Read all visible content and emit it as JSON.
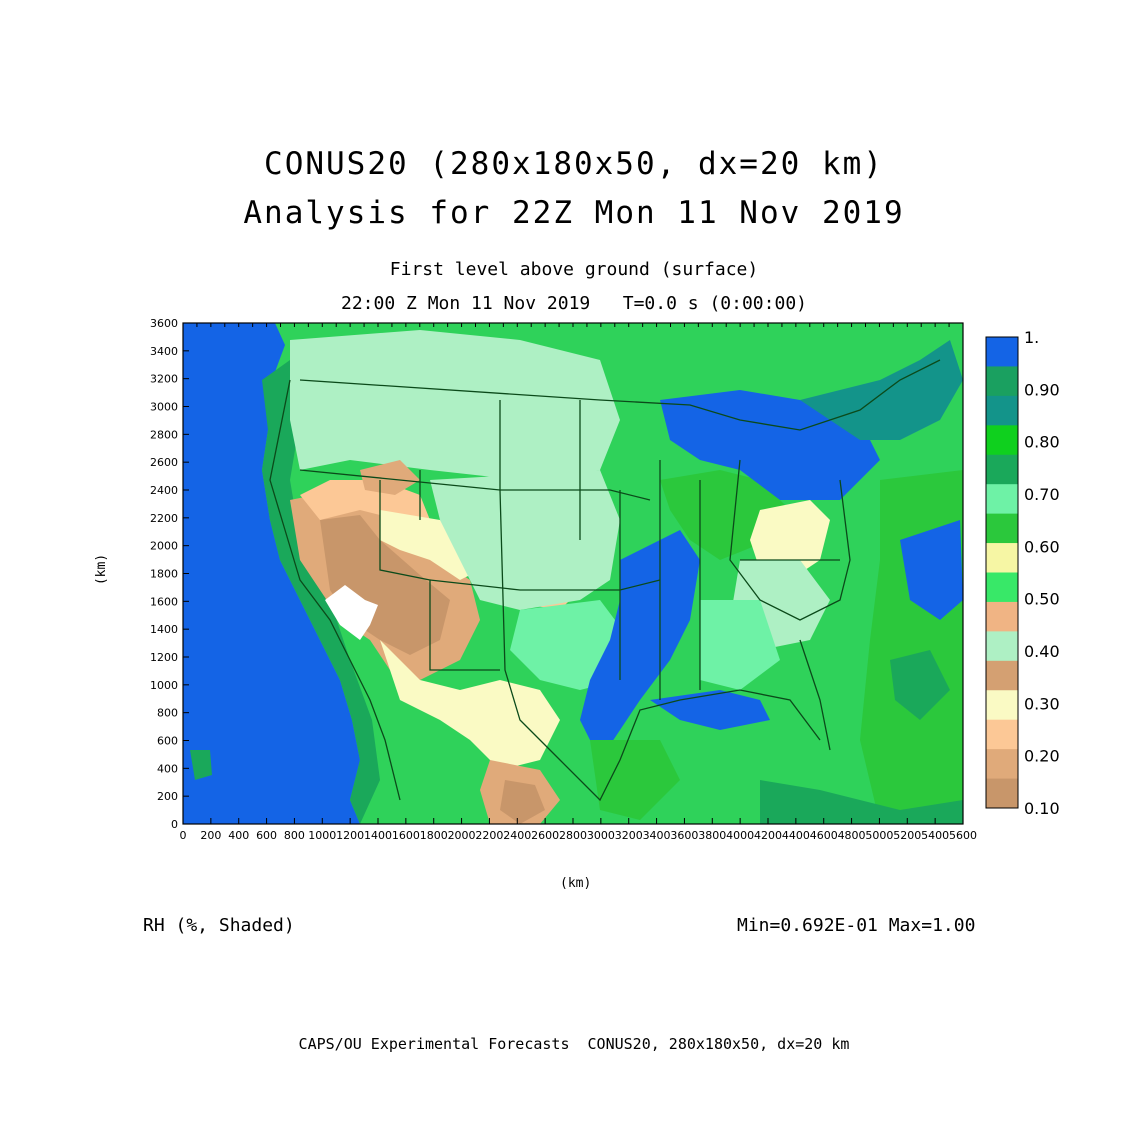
{
  "title": {
    "line1": "CONUS20 (280x180x50, dx=20 km)",
    "line2": "Analysis for 22Z Mon 11 Nov 2019"
  },
  "subtitle": {
    "line1": "First level above ground (surface)",
    "line2": "22:00 Z Mon 11 Nov 2019   T=0.0 s (0:00:00)"
  },
  "axes": {
    "xlabel": "(km)",
    "ylabel": "(km)",
    "xticks": [
      "0",
      "200",
      "400",
      "600",
      "800",
      "1000",
      "1200",
      "1400",
      "1600",
      "1800",
      "2000",
      "2200",
      "2400",
      "2600",
      "2800",
      "3000",
      "3200",
      "3400",
      "3600",
      "3800",
      "4000",
      "4200",
      "4400",
      "4600",
      "4800",
      "5000",
      "5200",
      "5400",
      "5600"
    ],
    "yticks": [
      "0",
      "200",
      "400",
      "600",
      "800",
      "1000",
      "1200",
      "1400",
      "1600",
      "1800",
      "2000",
      "2200",
      "2400",
      "2600",
      "2800",
      "3000",
      "3200",
      "3400",
      "3600"
    ],
    "xlim": [
      0,
      5600
    ],
    "ylim": [
      0,
      3600
    ]
  },
  "legend": {
    "levels": [
      {
        "label": "1.",
        "color": "#1464e6"
      },
      {
        "label": "0.90",
        "color": "#13948a"
      },
      {
        "label": "0.80",
        "color": "#1aa85a"
      },
      {
        "label": "0.70",
        "color": "#2bc83c"
      },
      {
        "label": "0.60",
        "color": "#38e868"
      },
      {
        "label": "0.50",
        "color": "#aef0c4"
      },
      {
        "label": "0.40",
        "color": "#fafac4"
      },
      {
        "label": "0.30",
        "color": "#fcc896"
      },
      {
        "label": "0.20",
        "color": "#e0aa7a"
      },
      {
        "label": "0.10",
        "color": "#c8966a"
      }
    ],
    "extra_colors": [
      "#1aa060",
      "#0fd01e",
      "#6ef2a6",
      "#f6f6a4",
      "#f0b484",
      "#d4a072"
    ]
  },
  "footer": {
    "variable": "RH (%, Shaded)",
    "minmax": "Min=0.692E-01 Max=1.00",
    "credit": "CAPS/OU Experimental Forecasts  CONUS20, 280x180x50, dx=20 km"
  },
  "colors": {
    "ocean": "#1464e6",
    "land_green": "#38e868",
    "border": "#0b4a1a"
  }
}
